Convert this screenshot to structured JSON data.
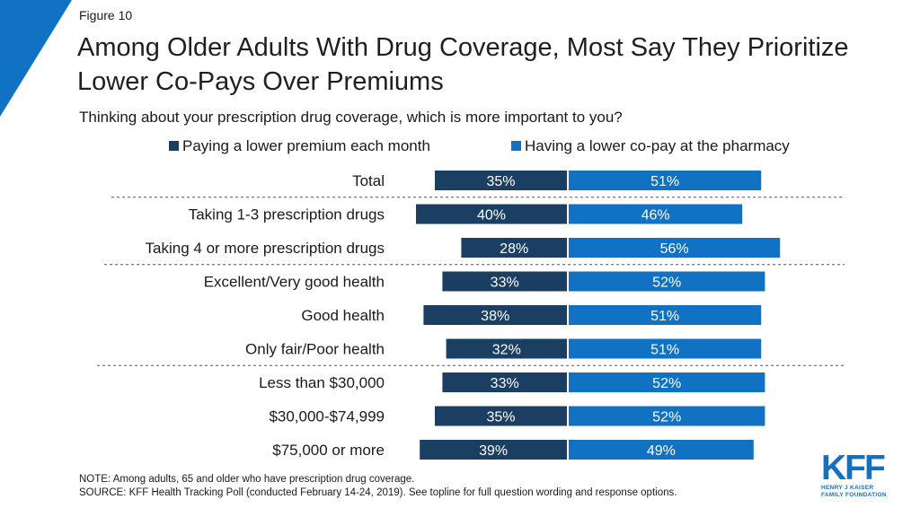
{
  "figure_label": "Figure 10",
  "title": "Among Older Adults With Drug Coverage, Most Say They Prioritize Lower Co-Pays Over Premiums",
  "subtitle": "Thinking about your prescription drug coverage, which is more important to you?",
  "colors": {
    "series1": "#1b3f63",
    "series2": "#1172c3",
    "corner": "#1172c3",
    "divider": "#555555"
  },
  "chart_data": {
    "type": "bar",
    "orientation": "horizontal-diverging",
    "categories": [
      "Total",
      "Taking 1-3 prescription drugs",
      "Taking 4 or more prescription drugs",
      "Excellent/Very good health",
      "Good health",
      "Only fair/Poor health",
      "Less than $30,000",
      "$30,000-$74,999",
      "$75,000 or more"
    ],
    "series": [
      {
        "name": "Paying a lower premium each month",
        "values": [
          35,
          40,
          28,
          33,
          38,
          32,
          33,
          35,
          39
        ],
        "labels": [
          "35%",
          "40%",
          "28%",
          "33%",
          "38%",
          "32%",
          "33%",
          "35%",
          "39%"
        ]
      },
      {
        "name": "Having a lower co-pay at the pharmacy",
        "values": [
          51,
          46,
          56,
          52,
          51,
          51,
          52,
          52,
          49
        ],
        "labels": [
          "51%",
          "46%",
          "56%",
          "52%",
          "51%",
          "51%",
          "52%",
          "52%",
          "49%"
        ]
      }
    ],
    "group_breaks_after": [
      0,
      2,
      5
    ],
    "legend_position": "top",
    "unit": "%"
  },
  "note": "NOTE: Among adults, 65 and older who have prescription drug coverage.",
  "source": "SOURCE: KFF Health Tracking Poll (conducted February 14-24, 2019). See topline for full question wording and response options.",
  "logo": {
    "mark": "KFF",
    "line1": "HENRY J KAISER",
    "line2": "FAMILY FOUNDATION"
  }
}
